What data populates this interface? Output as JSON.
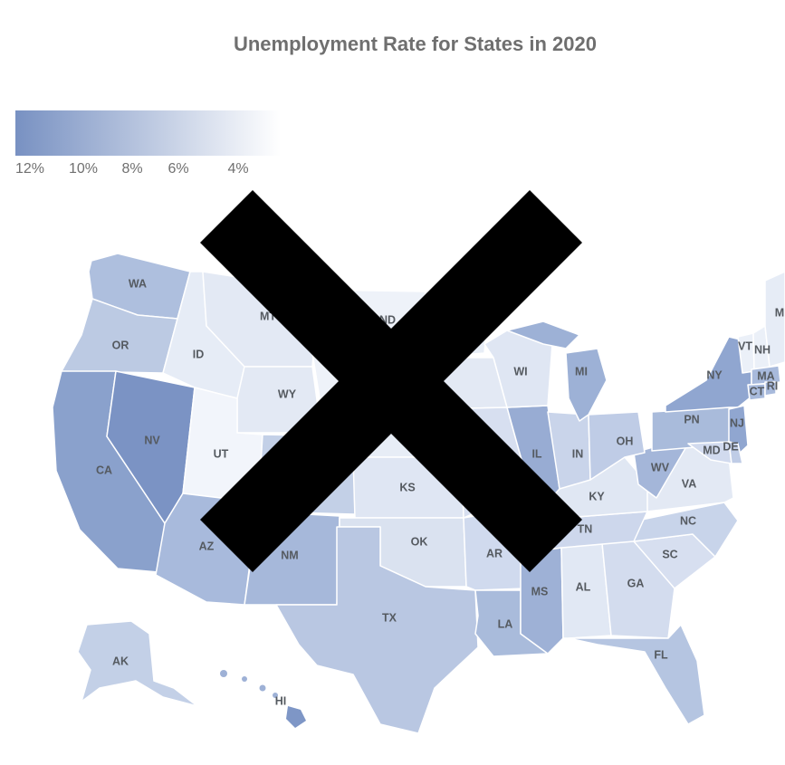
{
  "title": "Unemployment Rate for States in 2020",
  "legend": {
    "ticks": [
      "12%",
      "10%",
      "8%",
      "6%",
      "4%"
    ],
    "color_high": "#7891c2",
    "color_low": "#ffffff"
  },
  "overlay": {
    "symbol": "cross-out-mark",
    "color": "#000000"
  },
  "states": [
    {
      "abbr": "WA",
      "label": "WA"
    },
    {
      "abbr": "OR",
      "label": "OR"
    },
    {
      "abbr": "CA",
      "label": "CA"
    },
    {
      "abbr": "NV",
      "label": "NV"
    },
    {
      "abbr": "ID",
      "label": "ID"
    },
    {
      "abbr": "MT",
      "label": "MT"
    },
    {
      "abbr": "WY",
      "label": "WY"
    },
    {
      "abbr": "UT",
      "label": "UT"
    },
    {
      "abbr": "AZ",
      "label": "AZ"
    },
    {
      "abbr": "NM",
      "label": "NM"
    },
    {
      "abbr": "ND",
      "label": "ND"
    },
    {
      "abbr": "KS",
      "label": "KS"
    },
    {
      "abbr": "OK",
      "label": "OK"
    },
    {
      "abbr": "TX",
      "label": "TX"
    },
    {
      "abbr": "AR",
      "label": "AR"
    },
    {
      "abbr": "LA",
      "label": "LA"
    },
    {
      "abbr": "MS",
      "label": "MS"
    },
    {
      "abbr": "AL",
      "label": "AL"
    },
    {
      "abbr": "GA",
      "label": "GA"
    },
    {
      "abbr": "FL",
      "label": "FL"
    },
    {
      "abbr": "SC",
      "label": "SC"
    },
    {
      "abbr": "NC",
      "label": "NC"
    },
    {
      "abbr": "TN",
      "label": "TN"
    },
    {
      "abbr": "KY",
      "label": "KY"
    },
    {
      "abbr": "VA",
      "label": "VA"
    },
    {
      "abbr": "WV",
      "label": "WV"
    },
    {
      "abbr": "OH",
      "label": "OH"
    },
    {
      "abbr": "IN",
      "label": "IN"
    },
    {
      "abbr": "IL",
      "label": "IL"
    },
    {
      "abbr": "WI",
      "label": "WI"
    },
    {
      "abbr": "MI",
      "label": "MI"
    },
    {
      "abbr": "PN",
      "label": "PN"
    },
    {
      "abbr": "NY",
      "label": "NY"
    },
    {
      "abbr": "NJ",
      "label": "NJ"
    },
    {
      "abbr": "MD",
      "label": "MD"
    },
    {
      "abbr": "DE",
      "label": "DE"
    },
    {
      "abbr": "VT",
      "label": "VT"
    },
    {
      "abbr": "NH",
      "label": "NH"
    },
    {
      "abbr": "MA",
      "label": "MA"
    },
    {
      "abbr": "CT",
      "label": "CT"
    },
    {
      "abbr": "RI",
      "label": "RI"
    },
    {
      "abbr": "ME",
      "label": "M"
    },
    {
      "abbr": "AK",
      "label": "AK"
    },
    {
      "abbr": "HI",
      "label": "HI"
    }
  ]
}
